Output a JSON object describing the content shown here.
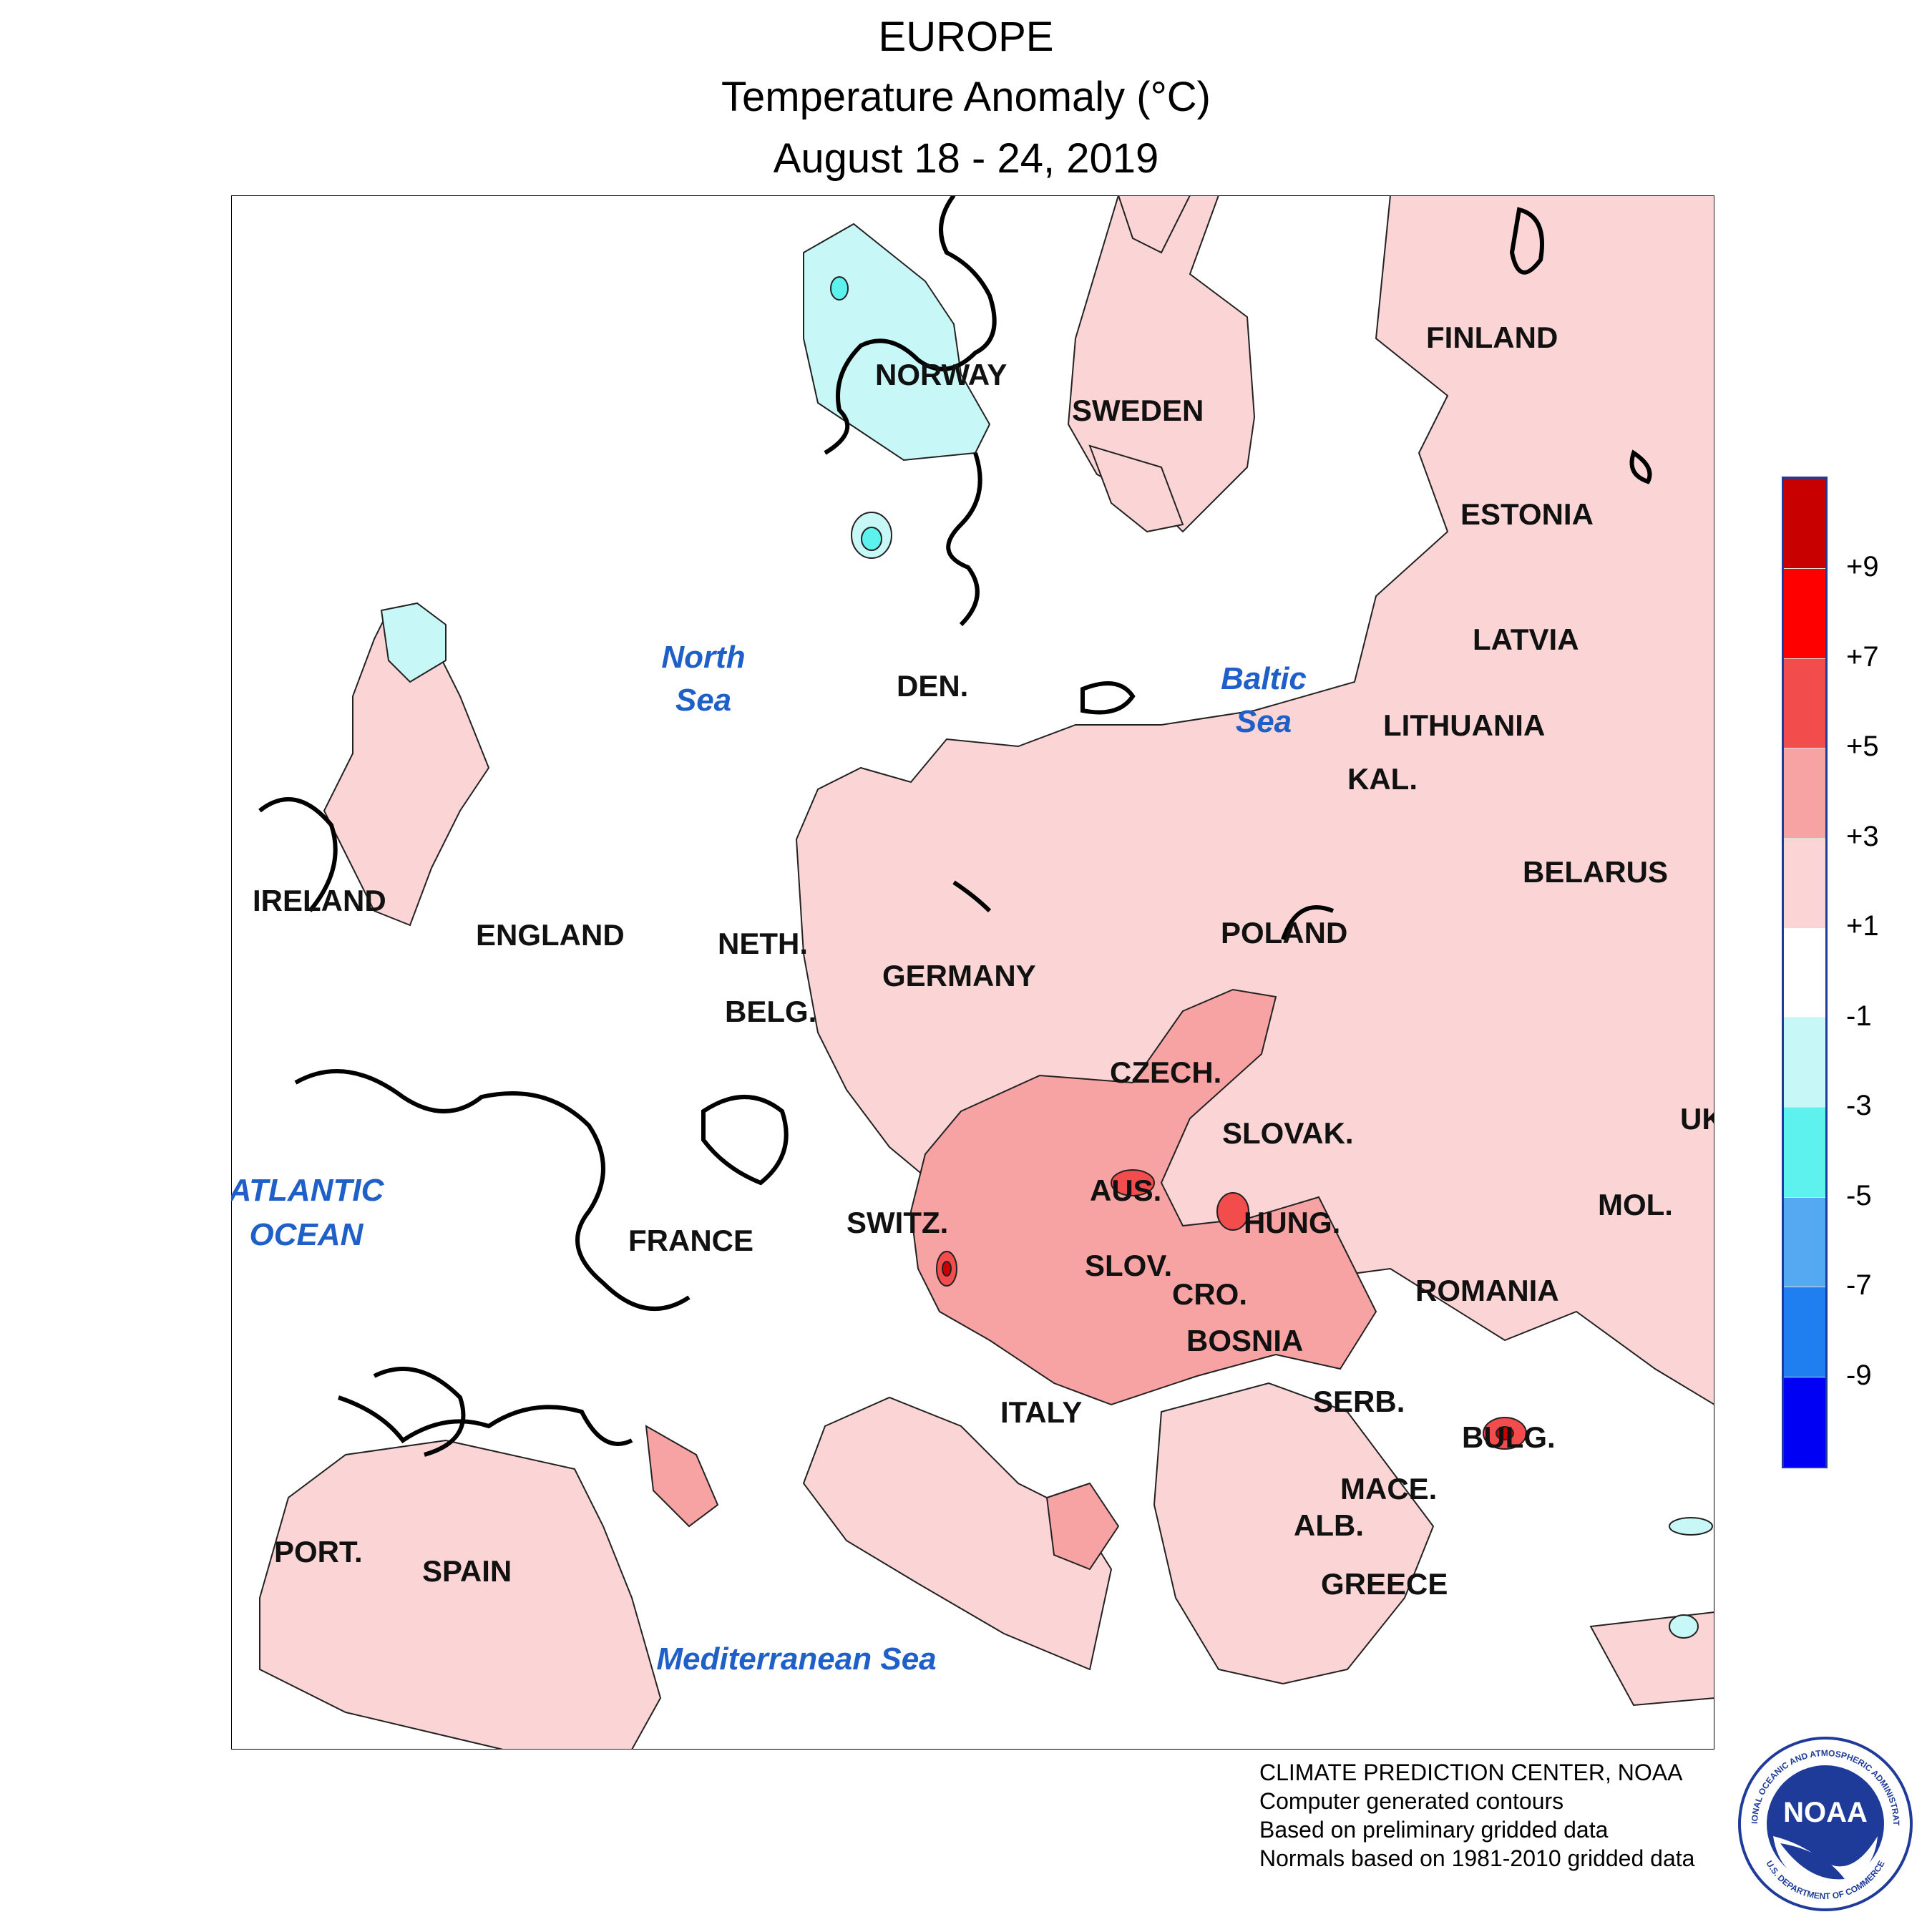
{
  "title": {
    "line1": "EUROPE",
    "line2": "Temperature Anomaly (°C)",
    "line3": "August 18 - 24, 2019"
  },
  "countries": {
    "norway": "NORWAY",
    "sweden": "SWEDEN",
    "finland": "FINLAND",
    "estonia": "ESTONIA",
    "latvia": "LATVIA",
    "lithuania": "LITHUANIA",
    "kal": "KAL.",
    "belarus": "BELARUS",
    "poland": "POLAND",
    "den": "DEN.",
    "ireland": "IRELAND",
    "england": "ENGLAND",
    "neth": "NETH.",
    "belg": "BELG.",
    "germany": "GERMANY",
    "czech": "CZECH.",
    "slovak": "SLOVAK.",
    "uk": "UK",
    "france": "FRANCE",
    "switz": "SWITZ.",
    "aus": "AUS.",
    "hung": "HUNG.",
    "mol": "MOL.",
    "slov": "SLOV.",
    "cro": "CRO.",
    "romania": "ROMANIA",
    "bosnia": "BOSNIA",
    "serb": "SERB.",
    "italy": "ITALY",
    "bulg": "BULG.",
    "mace": "MACE.",
    "alb": "ALB.",
    "greece": "GREECE",
    "port": "PORT.",
    "spain": "SPAIN"
  },
  "seas": {
    "north_sea_1": "North",
    "north_sea_2": "Sea",
    "baltic_1": "Baltic",
    "baltic_2": "Sea",
    "atlantic_1": "ATLANTIC",
    "atlantic_2": "OCEAN",
    "mediterranean": "Mediterranean Sea"
  },
  "legend": {
    "ticks": [
      "+9",
      "+7",
      "+5",
      "+3",
      "+1",
      "-1",
      "-3",
      "-5",
      "-7",
      "-9"
    ],
    "bands": [
      {
        "range": "> +9",
        "color": "#c80000"
      },
      {
        "range": "+7 to +9",
        "color": "#ff0000"
      },
      {
        "range": "+5 to +7",
        "color": "#f24c4c"
      },
      {
        "range": "+3 to +5",
        "color": "#f7a3a3"
      },
      {
        "range": "+1 to +3",
        "color": "#fbd5d5"
      },
      {
        "range": "-1 to +1",
        "color": "#ffffff"
      },
      {
        "range": "-3 to -1",
        "color": "#c8f7f7"
      },
      {
        "range": "-5 to -3",
        "color": "#5ef2ef"
      },
      {
        "range": "-7 to -5",
        "color": "#55a8f2"
      },
      {
        "range": "-9 to -7",
        "color": "#1f7ff0"
      },
      {
        "range": "< -9",
        "color": "#0000f5"
      }
    ]
  },
  "credits": {
    "line1": "CLIMATE PREDICTION CENTER, NOAA",
    "line2": "Computer generated contours",
    "line3": "Based on preliminary gridded data",
    "line4": "Normals based on 1981-2010 gridded data"
  },
  "logo": {
    "text": "NOAA",
    "ring_top": "NATIONAL OCEANIC AND ATMOSPHERIC ADMINISTRATION",
    "ring_bottom": "U.S. DEPARTMENT OF COMMERCE",
    "color": "#1f3b99"
  }
}
